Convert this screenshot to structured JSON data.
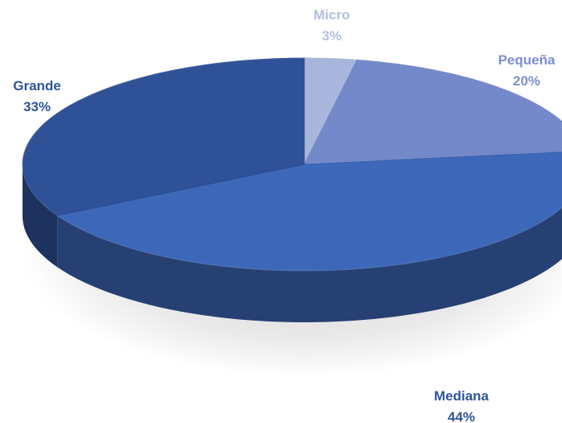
{
  "chart_data": {
    "type": "pie",
    "title": "",
    "style": "3d-pie",
    "slices": [
      {
        "name": "Micro",
        "value": 3,
        "label": "3%",
        "color": "#a9b6dc"
      },
      {
        "name": "Pequeña",
        "value": 20,
        "label": "20%",
        "color": "#7489c9"
      },
      {
        "name": "Mediana",
        "value": 44,
        "label": "44%",
        "color": "#3d68b9"
      },
      {
        "name": "Grande",
        "value": 33,
        "label": "33%",
        "color": "#2f5197"
      }
    ],
    "label_color": "#2f5597",
    "legend": "none"
  }
}
